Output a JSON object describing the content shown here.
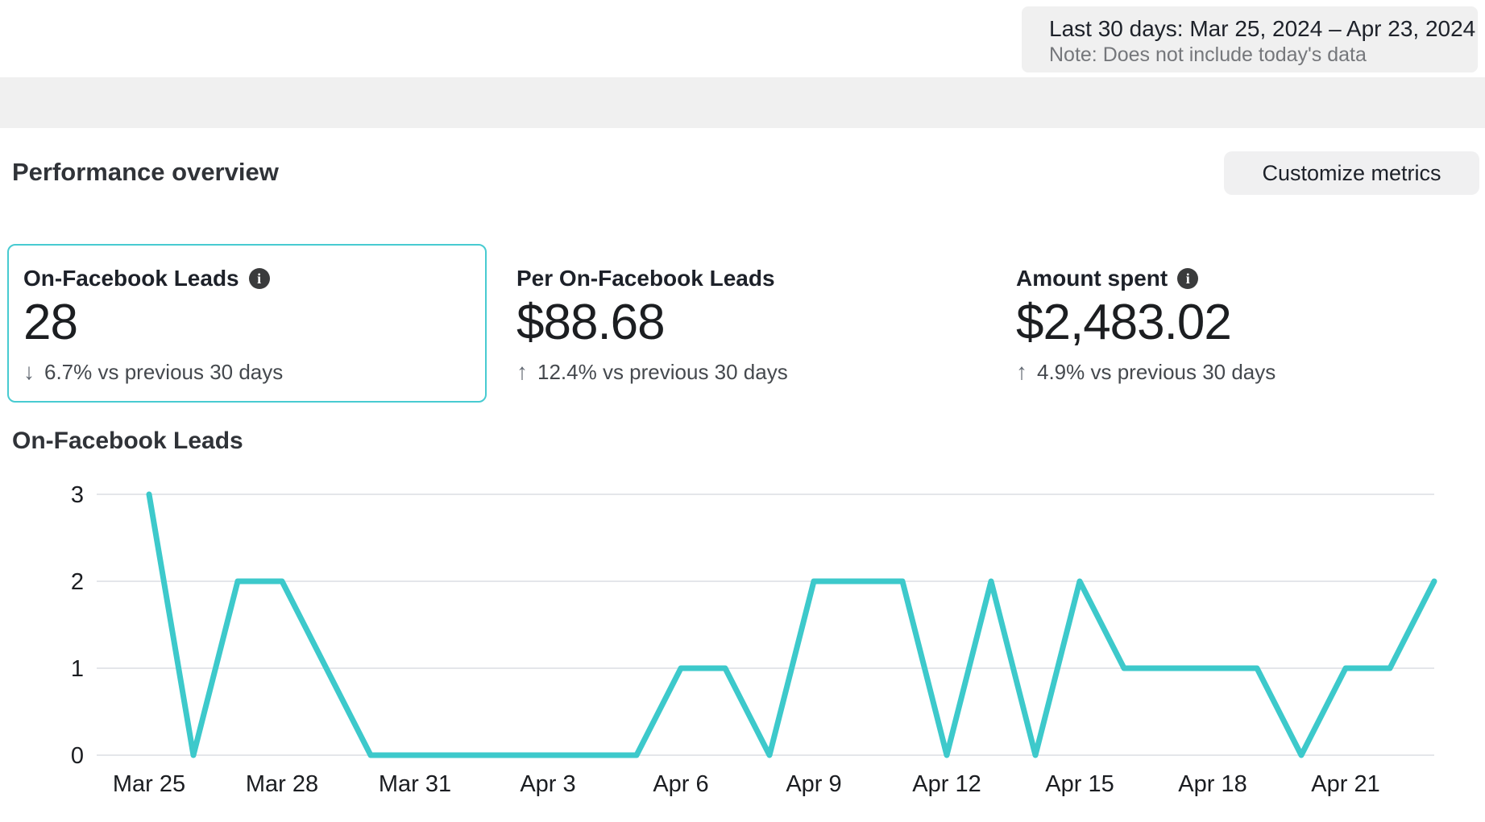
{
  "date_banner": {
    "title": "Last 30 days: Mar 25, 2024 – Apr 23, 2024",
    "note": "Note: Does not include today's data"
  },
  "header": {
    "title": "Performance overview",
    "customize_button": "Customize metrics"
  },
  "metrics": [
    {
      "label": "On-Facebook Leads",
      "value": "28",
      "delta_arrow": "↓",
      "delta_text": "6.7% vs previous 30 days",
      "selected": true
    },
    {
      "label": "Per On-Facebook Leads",
      "value": "$88.68",
      "delta_arrow": "↑",
      "delta_text": "12.4% vs previous 30 days",
      "selected": false
    },
    {
      "label": "Amount spent",
      "value": "$2,483.02",
      "delta_arrow": "↑",
      "delta_text": "4.9% vs previous 30 days",
      "selected": false
    }
  ],
  "chart_section": {
    "title": "On-Facebook Leads"
  },
  "chart_data": {
    "type": "line",
    "title": "On-Facebook Leads",
    "x": [
      "Mar 25",
      "Mar 26",
      "Mar 27",
      "Mar 28",
      "Mar 29",
      "Mar 30",
      "Mar 31",
      "Apr 1",
      "Apr 2",
      "Apr 3",
      "Apr 4",
      "Apr 5",
      "Apr 6",
      "Apr 7",
      "Apr 8",
      "Apr 9",
      "Apr 10",
      "Apr 11",
      "Apr 12",
      "Apr 13",
      "Apr 14",
      "Apr 15",
      "Apr 16",
      "Apr 17",
      "Apr 18",
      "Apr 19",
      "Apr 20",
      "Apr 21",
      "Apr 22",
      "Apr 23"
    ],
    "values": [
      3,
      0,
      2,
      2,
      1,
      0,
      0,
      0,
      0,
      0,
      0,
      0,
      1,
      1,
      0,
      2,
      2,
      2,
      0,
      2,
      0,
      2,
      1,
      1,
      1,
      1,
      0,
      1,
      1,
      2
    ],
    "ylim": [
      0,
      3
    ],
    "yticks": [
      0,
      1,
      2,
      3
    ],
    "x_tick_every": 3,
    "x_tick_labels": [
      "Mar 25",
      "Mar 28",
      "Mar 31",
      "Apr 3",
      "Apr 6",
      "Apr 9",
      "Apr 12",
      "Apr 15",
      "Apr 18",
      "Apr 21"
    ],
    "line_color": "#3dc9cb",
    "grid_color": "#e4e6ea",
    "axis_text_color": "#1b1d21",
    "legend": "none",
    "grid": "horizontal"
  }
}
